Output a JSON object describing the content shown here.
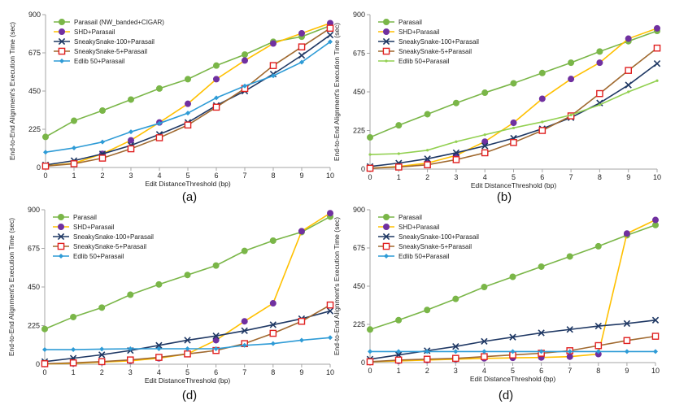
{
  "colors": {
    "parasail": "#7ab648",
    "shd": "#ffc000",
    "shd_marker": "#7030a0",
    "snake100": "#1f3864",
    "snake5_line": "#a0692f",
    "snake5_marker": "#e02020",
    "edlib_a": "#2e9bd6",
    "edlib_b": "#92d050",
    "axis": "#a6a6a6"
  },
  "chart_data": [
    {
      "type": "line",
      "caption": "(a)",
      "xlabel": "Edit DistanceThreshold (bp)",
      "ylabel": "End-to-End Alignment's Execution Time (sec)",
      "x": [
        0,
        1,
        2,
        3,
        4,
        5,
        6,
        7,
        8,
        9,
        10
      ],
      "xlim": [
        0,
        10
      ],
      "ylim": [
        0,
        900
      ],
      "yticks": [
        "0",
        "225",
        "450",
        "675",
        "900"
      ],
      "legend_position": "top-left",
      "series": [
        {
          "key": "parasail",
          "name": "Parasail (NW_banded+CIGAR)",
          "values": [
            180,
            275,
            335,
            400,
            465,
            520,
            600,
            665,
            740,
            770,
            835
          ]
        },
        {
          "key": "shd",
          "name": "SHD+Parasail",
          "values": [
            10,
            25,
            80,
            160,
            265,
            375,
            520,
            630,
            730,
            790,
            850
          ]
        },
        {
          "key": "snake100",
          "name": "SneakySnake-100+Parasail",
          "values": [
            15,
            40,
            80,
            130,
            195,
            265,
            365,
            450,
            550,
            660,
            780
          ]
        },
        {
          "key": "snake5",
          "name": "SneakySnake-5+Parasail",
          "values": [
            8,
            22,
            55,
            110,
            175,
            250,
            355,
            465,
            600,
            710,
            820
          ]
        },
        {
          "key": "edlib",
          "name": "Edlib 50+Parasail",
          "values": [
            90,
            115,
            150,
            210,
            260,
            320,
            410,
            480,
            540,
            620,
            740
          ]
        }
      ]
    },
    {
      "type": "line",
      "caption": "(b)",
      "xlabel": "Edit DistanceThreshold (bp)",
      "ylabel": "End-to-End Alignment's Execution Time (sec)",
      "x": [
        0,
        1,
        2,
        3,
        4,
        5,
        6,
        7,
        8,
        9,
        10
      ],
      "xlim": [
        0,
        10
      ],
      "ylim": [
        0,
        900
      ],
      "yticks": [
        "0",
        "225",
        "450",
        "675",
        "900"
      ],
      "legend_position": "top-left",
      "series": [
        {
          "key": "parasail",
          "name": "Parasail",
          "values": [
            185,
            255,
            320,
            385,
            445,
            500,
            560,
            620,
            685,
            745,
            805
          ]
        },
        {
          "key": "shd",
          "name": "SHD+Parasail",
          "values": [
            5,
            15,
            35,
            80,
            160,
            270,
            410,
            525,
            620,
            760,
            820
          ]
        },
        {
          "key": "snake100",
          "name": "SneakySnake-100+Parasail",
          "values": [
            15,
            35,
            60,
            95,
            135,
            180,
            235,
            300,
            385,
            490,
            615
          ]
        },
        {
          "key": "snake5",
          "name": "SneakySnake-5+Parasail",
          "values": [
            5,
            12,
            25,
            55,
            95,
            155,
            225,
            310,
            440,
            575,
            705
          ]
        },
        {
          "key": "edlib",
          "name": "Edlib 50+Parasail",
          "values": [
            85,
            90,
            110,
            160,
            200,
            240,
            275,
            315,
            375,
            450,
            515
          ]
        }
      ]
    },
    {
      "type": "line",
      "caption": "(d)",
      "xlabel": "Edit DistanceThreshold (bp)",
      "ylabel": "End-to-End Alignment's Execution Time (sec)",
      "x": [
        0,
        1,
        2,
        3,
        4,
        5,
        6,
        7,
        8,
        9,
        10
      ],
      "xlim": [
        0,
        10
      ],
      "ylim": [
        0,
        900
      ],
      "yticks": [
        "0",
        "225",
        "450",
        "675",
        "900"
      ],
      "legend_position": "top-left",
      "series": [
        {
          "key": "parasail",
          "name": "Parasail",
          "values": [
            205,
            275,
            330,
            405,
            465,
            520,
            575,
            660,
            720,
            770,
            860
          ]
        },
        {
          "key": "shd",
          "name": "SHD+Parasail",
          "values": [
            2,
            5,
            12,
            20,
            35,
            60,
            140,
            250,
            355,
            775,
            880
          ]
        },
        {
          "key": "snake100",
          "name": "SneakySnake-100+Parasail",
          "values": [
            15,
            35,
            55,
            80,
            110,
            140,
            165,
            195,
            230,
            265,
            310
          ]
        },
        {
          "key": "snake5",
          "name": "SneakySnake-5+Parasail",
          "values": [
            3,
            8,
            15,
            25,
            40,
            60,
            80,
            120,
            180,
            250,
            345
          ]
        },
        {
          "key": "edlib",
          "name": "Edlib 50+Parasail",
          "values": [
            85,
            85,
            88,
            90,
            90,
            90,
            90,
            110,
            120,
            140,
            155
          ]
        }
      ]
    },
    {
      "type": "line",
      "caption": "(d)",
      "xlabel": "Edit DistanceThreshold (bp)",
      "ylabel": "End-to-End Alignment's Execution Time (sec)",
      "x": [
        0,
        1,
        2,
        3,
        4,
        5,
        6,
        7,
        8,
        9,
        10
      ],
      "xlim": [
        0,
        10
      ],
      "ylim": [
        0,
        900
      ],
      "yticks": [
        "0",
        "225",
        "450",
        "675",
        "900"
      ],
      "legend_position": "top-left",
      "series": [
        {
          "key": "parasail",
          "name": "Parasail",
          "values": [
            195,
            250,
            310,
            375,
            445,
            505,
            565,
            625,
            685,
            750,
            810
          ]
        },
        {
          "key": "shd",
          "name": "SHD+Parasail",
          "values": [
            5,
            10,
            15,
            20,
            25,
            28,
            30,
            35,
            50,
            760,
            840
          ]
        },
        {
          "key": "snake100",
          "name": "SneakySnake-100+Parasail",
          "values": [
            20,
            45,
            70,
            95,
            125,
            150,
            175,
            195,
            215,
            230,
            250
          ]
        },
        {
          "key": "snake5",
          "name": "SneakySnake-5+Parasail",
          "values": [
            5,
            15,
            20,
            25,
            35,
            45,
            55,
            70,
            100,
            130,
            155
          ]
        },
        {
          "key": "edlib",
          "name": "Edlib 50+Parasail",
          "values": [
            65,
            65,
            65,
            65,
            65,
            65,
            65,
            65,
            65,
            65,
            65
          ]
        }
      ]
    }
  ]
}
